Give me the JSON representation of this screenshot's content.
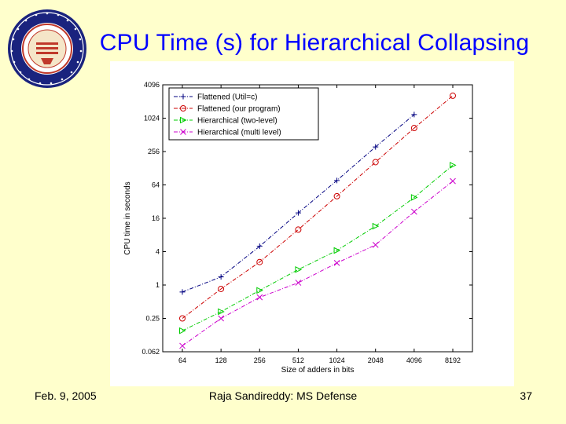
{
  "slide": {
    "title": "CPU Time (s) for Hierarchical Collapsing",
    "date": "Feb. 9, 2005",
    "author": "Raja Sandireddy: MS Defense",
    "page_number": "37"
  },
  "colors": {
    "background": "#ffffcc",
    "title": "#0000ff",
    "flat_util": "#000080",
    "flat_ours": "#cc0000",
    "hier_two": "#00cc00",
    "hier_multi": "#cc00cc"
  },
  "chart_data": {
    "type": "line",
    "title": "",
    "xlabel": "Size of adders in bits",
    "ylabel": "CPU time in seconds",
    "x_scale": "log2",
    "y_scale": "log2",
    "x": [
      64,
      128,
      256,
      512,
      1024,
      2048,
      4096,
      8192
    ],
    "x_tick_labels": [
      "64",
      "128",
      "256",
      "512",
      "1024",
      "2048",
      "4096",
      "8192"
    ],
    "y_ticks": [
      0.062,
      0.25,
      1,
      4,
      16,
      64,
      256,
      1024,
      4096
    ],
    "y_tick_labels": [
      "0.062",
      "0.25",
      "1",
      "4",
      "16",
      "64",
      "256",
      "1024",
      "4096"
    ],
    "ylim": [
      0.0625,
      4096
    ],
    "grid": false,
    "legend_position": "top-left",
    "series": [
      {
        "name": "Flattened (Util=c)",
        "marker": "plus",
        "line": "dashdot",
        "color": "#000080",
        "values": [
          0.75,
          1.4,
          5.0,
          20,
          77,
          310,
          1190,
          null
        ]
      },
      {
        "name": "Flattened (our program)",
        "marker": "circle",
        "line": "dashdot",
        "color": "#cc0000",
        "values": [
          0.25,
          0.85,
          2.6,
          10,
          40,
          165,
          680,
          2600
        ]
      },
      {
        "name": "Hierarchical (two-level)",
        "marker": "triangle-right",
        "line": "dashdot",
        "color": "#00cc00",
        "values": [
          0.15,
          0.33,
          0.8,
          1.9,
          4.2,
          11.5,
          38,
          145
        ]
      },
      {
        "name": "Hierarchical (multi level)",
        "marker": "x",
        "line": "dashdot",
        "color": "#cc00cc",
        "values": [
          0.08,
          0.25,
          0.6,
          1.1,
          2.5,
          5.3,
          21,
          75
        ]
      }
    ]
  }
}
